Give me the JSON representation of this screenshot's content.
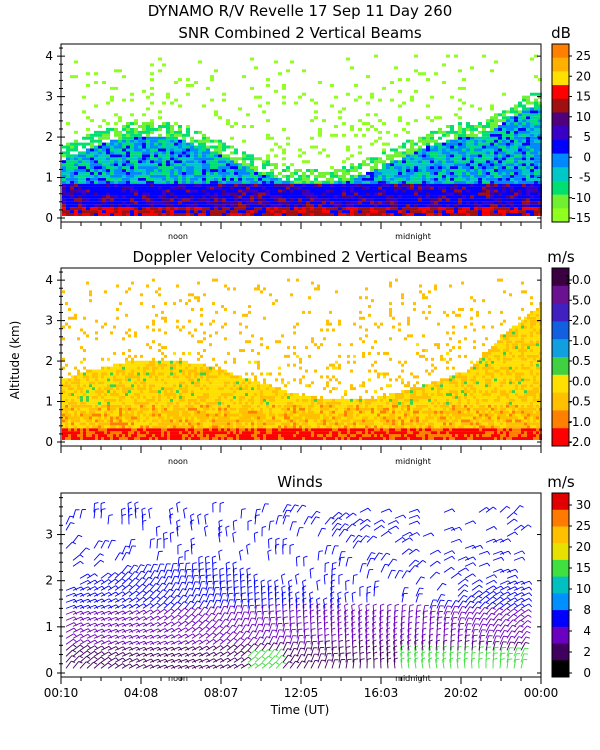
{
  "header": "DYNAMO R/V Revelle  17 Sep 11 Day 260",
  "chart_data": [
    {
      "type": "heatmap",
      "title": "SNR Combined 2 Vertical Beams",
      "colorbar_unit": "dB",
      "colorbar_ticks": [
        "25",
        "20",
        "15",
        "10",
        "5",
        "0",
        "-5",
        "-10",
        "-15"
      ],
      "colors": [
        "#ff7f00",
        "#ffb000",
        "#ffe000",
        "#ff0000",
        "#a01010",
        "#50007a",
        "#3a00c8",
        "#0000ff",
        "#0088ff",
        "#00c8c8",
        "#00e070",
        "#70f030",
        "#90ff20"
      ],
      "y_ticks": [
        "0",
        "1",
        "2",
        "3",
        "4"
      ],
      "ylim": [
        0,
        4.3
      ],
      "x_markers": [
        "noon",
        "midnight"
      ]
    },
    {
      "type": "heatmap",
      "title": "Doppler Velocity Combined 2 Vertical Beams",
      "colorbar_unit": "m/s",
      "ylabel": "Altitude (km)",
      "colorbar_ticks": [
        "10.0",
        "5.0",
        "2.0",
        "1.0",
        "0.5",
        "0.0",
        "-0.5",
        "-1.0",
        "-2.0"
      ],
      "colors": [
        "#3a0040",
        "#6a1090",
        "#4020c0",
        "#1060e0",
        "#10a0e0",
        "#40d040",
        "#ffe000",
        "#ffc000",
        "#ff8000",
        "#ff0000"
      ],
      "y_ticks": [
        "0",
        "1",
        "2",
        "3",
        "4"
      ],
      "ylim": [
        0,
        4.3
      ],
      "x_markers": [
        "noon",
        "midnight"
      ]
    },
    {
      "type": "scatter",
      "title": "Winds",
      "colorbar_unit": "m/s",
      "xlabel": "Time (UT)",
      "x_ticks": [
        "00:10",
        "04:08",
        "08:07",
        "12:05",
        "16:03",
        "20:02",
        "00:00"
      ],
      "colorbar_ticks": [
        "30",
        "25",
        "20",
        "15",
        "10",
        "8",
        "4",
        "2",
        "0"
      ],
      "colors": [
        "#e00000",
        "#ff7a00",
        "#ffc000",
        "#e8e000",
        "#40e040",
        "#00c0c0",
        "#0090ff",
        "#0000ff",
        "#6a00c0",
        "#400060",
        "#000000"
      ],
      "y_ticks": [
        "0",
        "1",
        "2",
        "3"
      ],
      "ylim": [
        0,
        3.9
      ],
      "x_markers": [
        "noon",
        "midnight"
      ]
    }
  ]
}
